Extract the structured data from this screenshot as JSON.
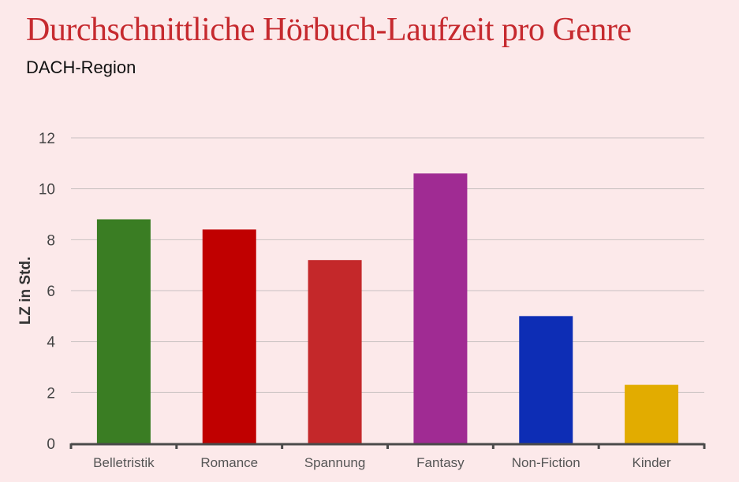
{
  "chart_data": {
    "type": "bar",
    "title": "Durchschnittliche Hörbuch-Laufzeit pro Genre",
    "subtitle": "DACH-Region",
    "xlabel": "",
    "ylabel": "LZ in Std.",
    "ylim": [
      0,
      12
    ],
    "yticks": [
      0,
      2,
      4,
      6,
      8,
      10,
      12
    ],
    "grid": true,
    "categories": [
      "Belletristik",
      "Romance",
      "Spannung",
      "Fantasy",
      "Non-Fiction",
      "Kinder"
    ],
    "values": [
      8.8,
      8.4,
      7.2,
      10.6,
      5.0,
      2.3
    ],
    "colors": [
      "#3a7d23",
      "#c00000",
      "#c4282a",
      "#a02b93",
      "#0d2db5",
      "#e2ac00"
    ]
  }
}
